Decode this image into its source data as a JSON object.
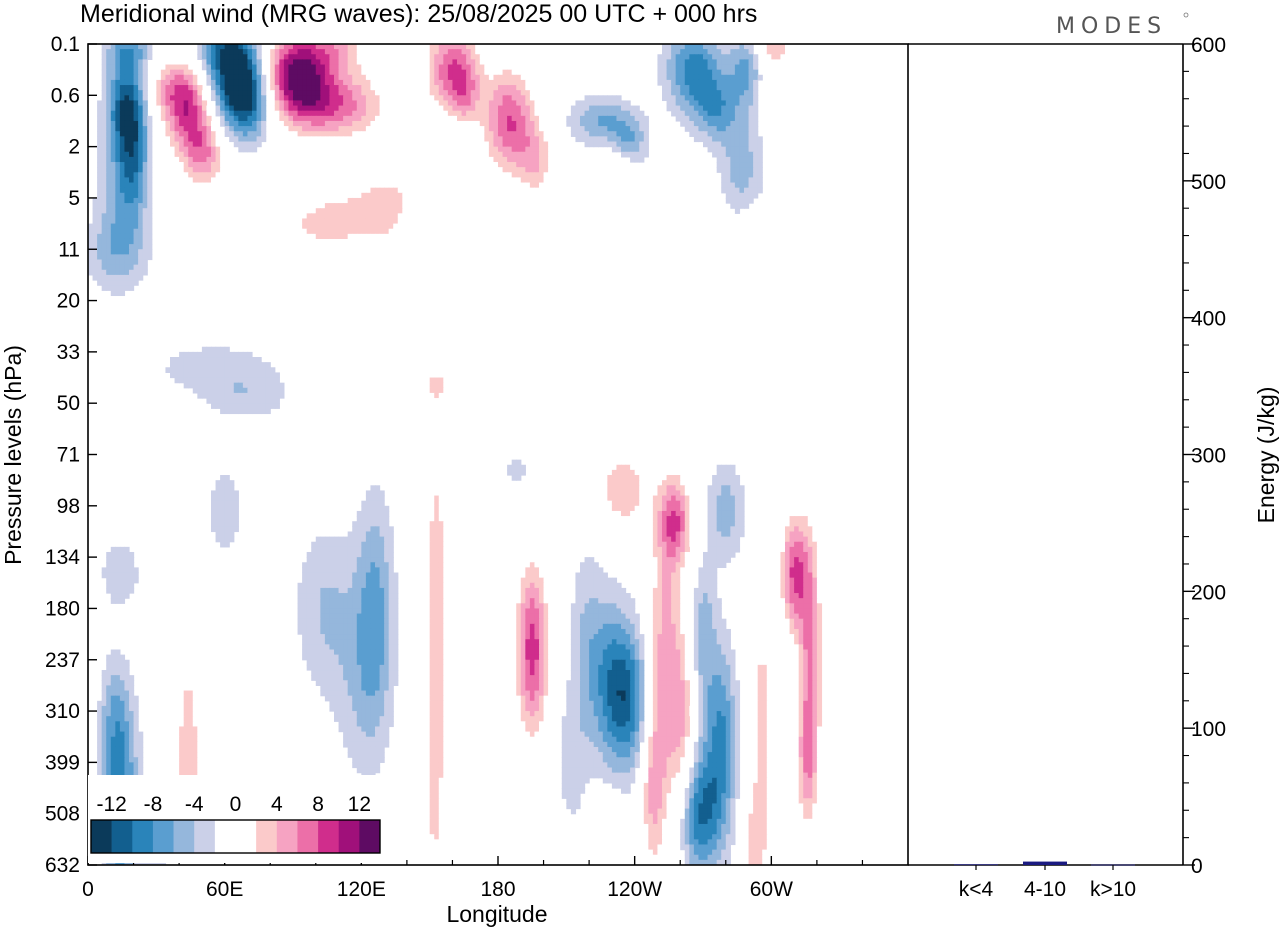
{
  "chart_data": {
    "type": "heatmap",
    "title": "Meridional wind (MRG waves):  25/08/2025  00 UTC  + 000 hrs",
    "brand": "MODES",
    "xlabel": "Longitude",
    "ylabel": "Pressure levels (hPa)",
    "ylabel_right": "Energy (J/kg)",
    "x_ticks": [
      "0",
      "60E",
      "120E",
      "180",
      "120W",
      "60W"
    ],
    "x_tick_degrees": [
      0,
      60,
      120,
      180,
      240,
      300
    ],
    "x_range_degrees": [
      0,
      360
    ],
    "pressure_levels": [
      "0.1",
      "0.6",
      "2",
      "5",
      "11",
      "20",
      "33",
      "50",
      "71",
      "98",
      "134",
      "180",
      "237",
      "310",
      "399",
      "508",
      "632"
    ],
    "energy_axis": {
      "ticks": [
        "0",
        "100",
        "200",
        "300",
        "400",
        "500",
        "600"
      ],
      "values": [
        0,
        100,
        200,
        300,
        400,
        500,
        600
      ],
      "ylim": [
        0,
        600
      ]
    },
    "energy_bars": [
      {
        "label": "k<4",
        "value": 0.5,
        "color": "#1a1a80"
      },
      {
        "label": "4-10",
        "value": 2.5,
        "color": "#1a1a80"
      },
      {
        "label": "k>10",
        "value": 0.3,
        "color": "#1a1a80"
      }
    ],
    "colorbar": {
      "labels": [
        "-12",
        "-8",
        "-4",
        "0",
        "4",
        "8",
        "12"
      ],
      "levels": [
        -14,
        -12,
        -10,
        -8,
        -6,
        -4,
        -2,
        2,
        4,
        6,
        8,
        10,
        12,
        14
      ],
      "colors": [
        "#0b3a5a",
        "#125f8f",
        "#2a84ba",
        "#5a9ed0",
        "#95b7dc",
        "#cbd0e8",
        "#ffffff",
        "#ffffff",
        "#fbcaca",
        "#f6a3c2",
        "#ec6fa8",
        "#d02d8c",
        "#a0107a",
        "#5e0b63"
      ]
    },
    "wind_anomalies": [
      {
        "lon": 16,
        "lev": 1.2,
        "sx": 6,
        "sy": 0.7,
        "amp": -9
      },
      {
        "lon": 20,
        "lev": 2.2,
        "sx": 5,
        "sy": 1.0,
        "amp": -8
      },
      {
        "lon": 12,
        "lev": 3.2,
        "sx": 7,
        "sy": 1.0,
        "amp": -4
      },
      {
        "lon": 12,
        "lev": 4.1,
        "sx": 12,
        "sy": 0.5,
        "amp": -3
      },
      {
        "lon": 38,
        "lev": 0.9,
        "sx": 8,
        "sy": 0.45,
        "amp": 7
      },
      {
        "lon": 45,
        "lev": 1.5,
        "sx": 7,
        "sy": 0.6,
        "amp": 9
      },
      {
        "lon": 52,
        "lev": 2.2,
        "sx": 6,
        "sy": 0.45,
        "amp": 6
      },
      {
        "lon": 65,
        "lev": 0.6,
        "sx": 8,
        "sy": 0.7,
        "amp": -15
      },
      {
        "lon": 55,
        "lev": 0.1,
        "sx": 7,
        "sy": 0.35,
        "amp": -4
      },
      {
        "lon": 72,
        "lev": 1.2,
        "sx": 6,
        "sy": 0.5,
        "amp": -6
      },
      {
        "lon": 18,
        "lev": 0.1,
        "sx": 8,
        "sy": 0.3,
        "amp": -5
      },
      {
        "lon": 92,
        "lev": 0.6,
        "sx": 10,
        "sy": 0.6,
        "amp": 15
      },
      {
        "lon": 104,
        "lev": 1.2,
        "sx": 10,
        "sy": 0.45,
        "amp": 7
      },
      {
        "lon": 120,
        "lev": 1.2,
        "sx": 9,
        "sy": 0.45,
        "amp": 5
      },
      {
        "lon": 110,
        "lev": 0.1,
        "sx": 9,
        "sy": 0.35,
        "amp": 5
      },
      {
        "lon": 160,
        "lev": 0.5,
        "sx": 8,
        "sy": 0.6,
        "amp": 10
      },
      {
        "lon": 166,
        "lev": 1.0,
        "sx": 4,
        "sy": 0.4,
        "amp": 4
      },
      {
        "lon": 185,
        "lev": 1.5,
        "sx": 8,
        "sy": 0.7,
        "amp": 10
      },
      {
        "lon": 197,
        "lev": 2.3,
        "sx": 6,
        "sy": 0.5,
        "amp": 5
      },
      {
        "lon": 225,
        "lev": 1.5,
        "sx": 10,
        "sy": 0.35,
        "amp": -6
      },
      {
        "lon": 238,
        "lev": 1.9,
        "sx": 6,
        "sy": 0.35,
        "amp": -5
      },
      {
        "lon": 266,
        "lev": 0.5,
        "sx": 9,
        "sy": 0.6,
        "amp": -9
      },
      {
        "lon": 290,
        "lev": 0.5,
        "sx": 6,
        "sy": 0.5,
        "amp": -7
      },
      {
        "lon": 276,
        "lev": 1.3,
        "sx": 7,
        "sy": 0.45,
        "amp": -6
      },
      {
        "lon": 287,
        "lev": 2.4,
        "sx": 7,
        "sy": 0.7,
        "amp": -5
      },
      {
        "lon": 300,
        "lev": 0.6,
        "sx": 6,
        "sy": 0.4,
        "amp": 4
      },
      {
        "lon": 300,
        "lev": 0.0,
        "sx": 6,
        "sy": 0.25,
        "amp": 5
      },
      {
        "lon": 312,
        "lev": 2.2,
        "sx": 4,
        "sy": 0.7,
        "amp": 4
      },
      {
        "lon": 90,
        "lev": 3.6,
        "sx": 22,
        "sy": 0.55,
        "amp": 3
      },
      {
        "lon": 115,
        "lev": 3.3,
        "sx": 15,
        "sy": 0.6,
        "amp": 3
      },
      {
        "lon": 132,
        "lev": 3.2,
        "sx": 8,
        "sy": 0.6,
        "amp": 3
      },
      {
        "lon": 155,
        "lev": 2.8,
        "sx": 12,
        "sy": 0.35,
        "amp": 3
      },
      {
        "lon": 230,
        "lev": 2.4,
        "sx": 6,
        "sy": 0.3,
        "amp": 3
      },
      {
        "lon": 300,
        "lev": 3.6,
        "sx": 8,
        "sy": 0.3,
        "amp": 3
      },
      {
        "lon": 55,
        "lev": 6.3,
        "sx": 22,
        "sy": 0.4,
        "amp": -3
      },
      {
        "lon": 70,
        "lev": 6.9,
        "sx": 14,
        "sy": 0.35,
        "amp": -3
      },
      {
        "lon": 152,
        "lev": 6.6,
        "sx": 12,
        "sy": 0.4,
        "amp": 3
      },
      {
        "lon": 282,
        "lev": 7.4,
        "sx": 18,
        "sy": 0.3,
        "amp": 3
      },
      {
        "lon": 188,
        "lev": 8.3,
        "sx": 4,
        "sy": 0.25,
        "amp": -3
      },
      {
        "lon": 235,
        "lev": 8.7,
        "sx": 8,
        "sy": 0.55,
        "amp": 6
      },
      {
        "lon": 258,
        "lev": 9.3,
        "sx": 5,
        "sy": 0.6,
        "amp": 9
      },
      {
        "lon": 280,
        "lev": 9.1,
        "sx": 6,
        "sy": 0.7,
        "amp": -5
      },
      {
        "lon": 310,
        "lev": 10.3,
        "sx": 4,
        "sy": 0.8,
        "amp": 10
      },
      {
        "lon": 317,
        "lev": 11.5,
        "sx": 3.5,
        "sy": 1.5,
        "amp": 8
      },
      {
        "lon": 316,
        "lev": 14.0,
        "sx": 3.5,
        "sy": 1.0,
        "amp": 7
      },
      {
        "lon": 40,
        "lev": 9.0,
        "sx": 4,
        "sy": 0.4,
        "amp": 3
      },
      {
        "lon": 60,
        "lev": 9.1,
        "sx": 5,
        "sy": 0.6,
        "amp": -4
      },
      {
        "lon": 14,
        "lev": 10.3,
        "sx": 8,
        "sy": 0.6,
        "amp": -3
      },
      {
        "lon": 126,
        "lev": 11.0,
        "sx": 6,
        "sy": 1.6,
        "amp": -6
      },
      {
        "lon": 104,
        "lev": 11.0,
        "sx": 10,
        "sy": 1.2,
        "amp": -4
      },
      {
        "lon": 120,
        "lev": 12.6,
        "sx": 9,
        "sy": 1.4,
        "amp": -3
      },
      {
        "lon": 153,
        "lev": 10.5,
        "sx": 4,
        "sy": 2.4,
        "amp": 5
      },
      {
        "lon": 152,
        "lev": 14.5,
        "sx": 3.5,
        "sy": 2.0,
        "amp": 4
      },
      {
        "lon": 195,
        "lev": 11.8,
        "sx": 5,
        "sy": 1.2,
        "amp": 11
      },
      {
        "lon": 218,
        "lev": 11.5,
        "sx": 5,
        "sy": 1.4,
        "amp": -3
      },
      {
        "lon": 212,
        "lev": 14.0,
        "sx": 5,
        "sy": 1.0,
        "amp": -3
      },
      {
        "lon": 228,
        "lev": 12.3,
        "sx": 7,
        "sy": 1.2,
        "amp": -6
      },
      {
        "lon": 237,
        "lev": 12.8,
        "sx": 7,
        "sy": 1.0,
        "amp": -9
      },
      {
        "lon": 253,
        "lev": 12.0,
        "sx": 5,
        "sy": 2.0,
        "amp": 7
      },
      {
        "lon": 261,
        "lev": 13.5,
        "sx": 4,
        "sy": 1.5,
        "amp": 6
      },
      {
        "lon": 248,
        "lev": 14.5,
        "sx": 4,
        "sy": 1.2,
        "amp": 6
      },
      {
        "lon": 270,
        "lev": 11.5,
        "sx": 4,
        "sy": 1.0,
        "amp": -5
      },
      {
        "lon": 278,
        "lev": 13.5,
        "sx": 5,
        "sy": 1.3,
        "amp": -8
      },
      {
        "lon": 268,
        "lev": 15.0,
        "sx": 7,
        "sy": 0.9,
        "amp": -10
      },
      {
        "lon": 296,
        "lev": 13.0,
        "sx": 4,
        "sy": 1.5,
        "amp": 5
      },
      {
        "lon": 293,
        "lev": 15.6,
        "sx": 4,
        "sy": 0.8,
        "amp": 5
      },
      {
        "lon": 14,
        "lev": 14.8,
        "sx": 6,
        "sy": 1.3,
        "amp": -9
      },
      {
        "lon": 12,
        "lev": 13.0,
        "sx": 5,
        "sy": 0.8,
        "amp": -4
      },
      {
        "lon": 44,
        "lev": 14.2,
        "sx": 4,
        "sy": 1.8,
        "amp": 6
      },
      {
        "lon": 30,
        "lev": 15.6,
        "sx": 5,
        "sy": 0.6,
        "amp": -3
      },
      {
        "lon": 200,
        "lev": 15.3,
        "sx": 4,
        "sy": 0.4,
        "amp": 3
      },
      {
        "lon": 230,
        "lev": 15.4,
        "sx": 4,
        "sy": 0.5,
        "amp": 3
      },
      {
        "lon": 1,
        "lev": 12.0,
        "sx": 2,
        "sy": 2.5,
        "amp": 3
      }
    ]
  }
}
